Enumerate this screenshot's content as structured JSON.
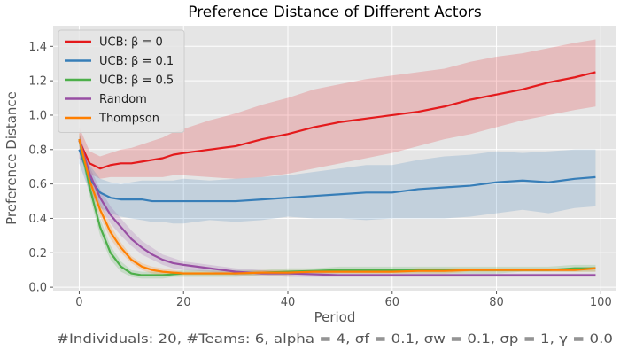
{
  "chart_data": {
    "type": "line",
    "title": "Preference Distance of Different Actors",
    "xlabel": "Period",
    "ylabel": "Preference Distance",
    "caption": "#Individuals: 20,  #Teams: 6,  alpha = 4,  σf = 0.1,  σw = 0.1,  σp = 1, γ = 0.0",
    "xlim": [
      -5,
      103
    ],
    "ylim": [
      -0.02,
      1.52
    ],
    "xticks": [
      0,
      20,
      40,
      60,
      80,
      100
    ],
    "yticks": [
      0.0,
      0.2,
      0.4,
      0.6,
      0.8,
      1.0,
      1.2,
      1.4
    ],
    "grid": true,
    "legend_position": "top-left",
    "x": [
      0,
      2,
      4,
      6,
      8,
      10,
      12,
      14,
      16,
      18,
      20,
      25,
      30,
      35,
      40,
      45,
      50,
      55,
      60,
      65,
      70,
      75,
      80,
      85,
      90,
      95,
      99
    ],
    "series": [
      {
        "name": "UCB: β = 0",
        "color": "#e41a1c",
        "values": [
          0.85,
          0.72,
          0.69,
          0.71,
          0.72,
          0.72,
          0.73,
          0.74,
          0.75,
          0.77,
          0.78,
          0.8,
          0.82,
          0.86,
          0.89,
          0.93,
          0.96,
          0.98,
          1.0,
          1.02,
          1.05,
          1.09,
          1.12,
          1.15,
          1.19,
          1.22,
          1.25
        ],
        "lower": [
          0.75,
          0.66,
          0.63,
          0.64,
          0.64,
          0.64,
          0.64,
          0.64,
          0.64,
          0.65,
          0.65,
          0.64,
          0.63,
          0.64,
          0.66,
          0.69,
          0.72,
          0.75,
          0.78,
          0.82,
          0.86,
          0.89,
          0.93,
          0.97,
          1.0,
          1.03,
          1.05
        ],
        "upper": [
          0.93,
          0.79,
          0.76,
          0.78,
          0.8,
          0.81,
          0.83,
          0.85,
          0.87,
          0.9,
          0.92,
          0.97,
          1.01,
          1.06,
          1.1,
          1.15,
          1.18,
          1.21,
          1.23,
          1.25,
          1.27,
          1.31,
          1.34,
          1.36,
          1.39,
          1.42,
          1.44
        ]
      },
      {
        "name": "UCB: β = 0.1",
        "color": "#377eb8",
        "values": [
          0.8,
          0.63,
          0.55,
          0.52,
          0.51,
          0.51,
          0.51,
          0.5,
          0.5,
          0.5,
          0.5,
          0.5,
          0.5,
          0.51,
          0.52,
          0.53,
          0.54,
          0.55,
          0.55,
          0.57,
          0.58,
          0.59,
          0.61,
          0.62,
          0.61,
          0.63,
          0.64
        ],
        "lower": [
          0.72,
          0.55,
          0.46,
          0.43,
          0.41,
          0.4,
          0.39,
          0.38,
          0.38,
          0.37,
          0.37,
          0.39,
          0.38,
          0.39,
          0.41,
          0.4,
          0.4,
          0.39,
          0.4,
          0.4,
          0.4,
          0.41,
          0.43,
          0.45,
          0.43,
          0.46,
          0.47
        ],
        "upper": [
          0.88,
          0.71,
          0.63,
          0.61,
          0.6,
          0.61,
          0.62,
          0.62,
          0.62,
          0.62,
          0.63,
          0.62,
          0.63,
          0.64,
          0.65,
          0.67,
          0.69,
          0.71,
          0.71,
          0.74,
          0.76,
          0.77,
          0.79,
          0.78,
          0.79,
          0.8,
          0.8
        ]
      },
      {
        "name": "UCB: β = 0.5",
        "color": "#4daf4a",
        "values": [
          0.86,
          0.58,
          0.35,
          0.2,
          0.12,
          0.08,
          0.07,
          0.07,
          0.07,
          0.075,
          0.08,
          0.08,
          0.08,
          0.085,
          0.09,
          0.095,
          0.1,
          0.1,
          0.1,
          0.1,
          0.1,
          0.1,
          0.1,
          0.1,
          0.1,
          0.11,
          0.11
        ],
        "lower": [
          0.82,
          0.53,
          0.3,
          0.16,
          0.09,
          0.06,
          0.05,
          0.05,
          0.05,
          0.06,
          0.06,
          0.06,
          0.06,
          0.07,
          0.07,
          0.08,
          0.08,
          0.08,
          0.08,
          0.08,
          0.08,
          0.08,
          0.08,
          0.09,
          0.09,
          0.09,
          0.09
        ],
        "upper": [
          0.9,
          0.63,
          0.4,
          0.24,
          0.15,
          0.1,
          0.09,
          0.09,
          0.09,
          0.09,
          0.1,
          0.1,
          0.1,
          0.1,
          0.11,
          0.11,
          0.12,
          0.12,
          0.12,
          0.12,
          0.12,
          0.12,
          0.12,
          0.12,
          0.12,
          0.13,
          0.13
        ]
      },
      {
        "name": "Random",
        "color": "#984ea3",
        "values": [
          0.86,
          0.66,
          0.52,
          0.42,
          0.35,
          0.28,
          0.23,
          0.19,
          0.16,
          0.14,
          0.13,
          0.11,
          0.09,
          0.08,
          0.08,
          0.075,
          0.07,
          0.07,
          0.07,
          0.07,
          0.07,
          0.07,
          0.07,
          0.07,
          0.07,
          0.07,
          0.07
        ],
        "lower": [
          0.82,
          0.62,
          0.47,
          0.37,
          0.3,
          0.24,
          0.19,
          0.16,
          0.13,
          0.11,
          0.1,
          0.09,
          0.07,
          0.07,
          0.06,
          0.06,
          0.06,
          0.06,
          0.06,
          0.06,
          0.06,
          0.06,
          0.06,
          0.06,
          0.06,
          0.06,
          0.06
        ],
        "upper": [
          0.9,
          0.7,
          0.57,
          0.47,
          0.4,
          0.33,
          0.27,
          0.23,
          0.19,
          0.17,
          0.15,
          0.13,
          0.11,
          0.1,
          0.09,
          0.09,
          0.08,
          0.08,
          0.08,
          0.08,
          0.08,
          0.08,
          0.08,
          0.08,
          0.08,
          0.08,
          0.08
        ]
      },
      {
        "name": "Thompson",
        "color": "#ff7f00",
        "values": [
          0.86,
          0.62,
          0.45,
          0.32,
          0.23,
          0.16,
          0.12,
          0.1,
          0.09,
          0.085,
          0.08,
          0.08,
          0.08,
          0.085,
          0.085,
          0.09,
          0.09,
          0.09,
          0.09,
          0.095,
          0.095,
          0.1,
          0.1,
          0.1,
          0.1,
          0.1,
          0.11
        ],
        "lower": [
          0.82,
          0.58,
          0.41,
          0.28,
          0.2,
          0.14,
          0.1,
          0.08,
          0.07,
          0.07,
          0.07,
          0.07,
          0.07,
          0.07,
          0.07,
          0.08,
          0.08,
          0.08,
          0.08,
          0.08,
          0.08,
          0.09,
          0.09,
          0.09,
          0.09,
          0.09,
          0.09
        ],
        "upper": [
          0.9,
          0.66,
          0.49,
          0.36,
          0.26,
          0.18,
          0.14,
          0.12,
          0.11,
          0.1,
          0.09,
          0.09,
          0.09,
          0.1,
          0.1,
          0.1,
          0.1,
          0.1,
          0.1,
          0.11,
          0.11,
          0.11,
          0.11,
          0.11,
          0.11,
          0.11,
          0.12
        ]
      }
    ],
    "colors": {
      "plot_background": "#e5e5e5",
      "grid": "#ffffff",
      "text": "#555555",
      "title": "#000000"
    }
  }
}
